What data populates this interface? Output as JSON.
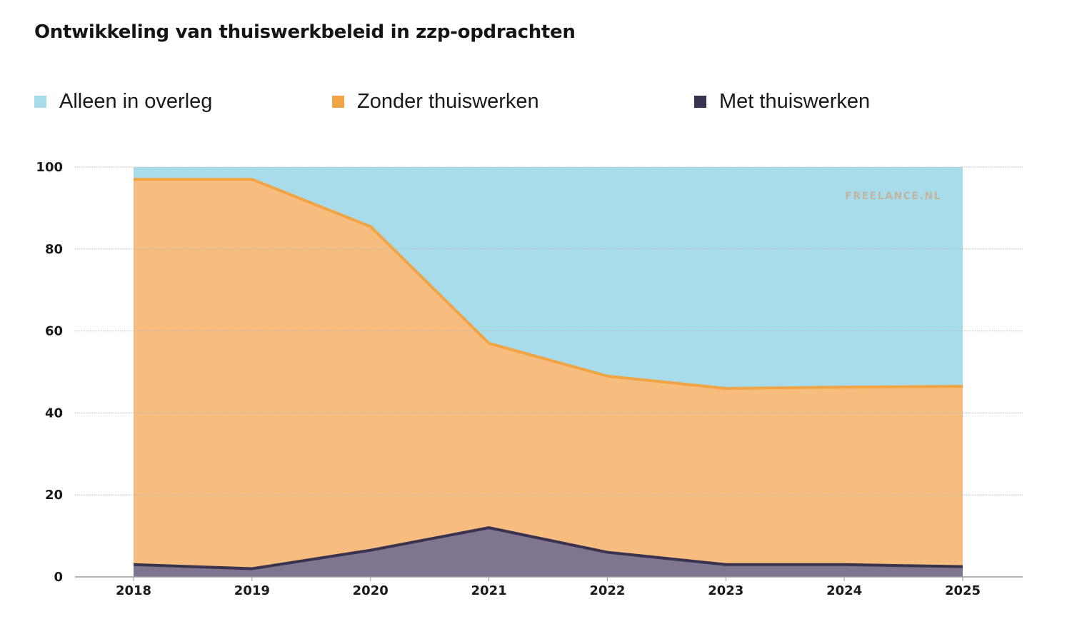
{
  "title": "Ontwikkeling van thuiswerkbeleid in zzp-opdrachten",
  "watermark": "FREELANCE.NL",
  "legend": [
    {
      "label": "Alleen in overleg",
      "color": "#a9dcea"
    },
    {
      "label": "Zonder thuiswerken",
      "color": "#f0a444"
    },
    {
      "label": "Met thuiswerken",
      "color": "#3a3350"
    }
  ],
  "chart_data": {
    "type": "area",
    "stacked": true,
    "title": "Ontwikkeling van thuiswerkbeleid in zzp-opdrachten",
    "xlabel": "",
    "ylabel": "",
    "ylim": [
      0,
      100
    ],
    "yticks": [
      0,
      20,
      40,
      60,
      80,
      100
    ],
    "grid": true,
    "legend_position": "top",
    "categories": [
      "2018",
      "2019",
      "2020",
      "2021",
      "2022",
      "2023",
      "2024",
      "2025"
    ],
    "series": [
      {
        "name": "Met thuiswerken",
        "values": [
          3,
          2,
          6.5,
          12,
          6,
          3,
          3,
          2.5
        ],
        "fill": "#7f7590",
        "line": "#3a3350"
      },
      {
        "name": "Zonder thuiswerken",
        "values": [
          94,
          95,
          79,
          45,
          43,
          43,
          43.3,
          44
        ],
        "fill": "#f6bd7e",
        "line": "#f0a444"
      },
      {
        "name": "Alleen in overleg",
        "values": [
          3,
          3,
          14.5,
          43,
          51,
          54,
          53.7,
          53.5
        ],
        "fill": "#a9dcea",
        "line": "#8fd0e4"
      }
    ]
  }
}
